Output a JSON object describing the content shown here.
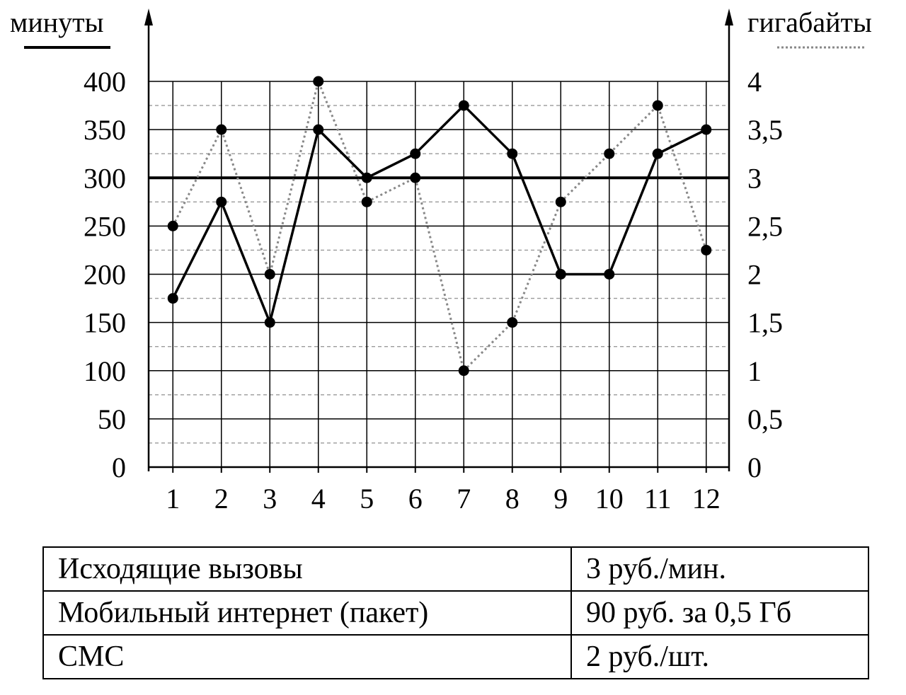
{
  "chart_data": {
    "type": "line",
    "x": [
      1,
      2,
      3,
      4,
      5,
      6,
      7,
      8,
      9,
      10,
      11,
      12
    ],
    "x_ticks": [
      "1",
      "2",
      "3",
      "4",
      "5",
      "6",
      "7",
      "8",
      "9",
      "10",
      "11",
      "12"
    ],
    "y_left": {
      "label": "минуты",
      "ylim": [
        0,
        400
      ],
      "ticks": [
        "0",
        "50",
        "100",
        "150",
        "200",
        "250",
        "300",
        "350",
        "400"
      ]
    },
    "y_right": {
      "label": "гигабайты",
      "ylim": [
        0,
        4
      ],
      "ticks": [
        "0",
        "0,5",
        "1",
        "1,5",
        "2",
        "2,5",
        "3",
        "3,5",
        "4"
      ]
    },
    "reference_line_minutes": 300,
    "grid": true,
    "series": [
      {
        "axis": "left",
        "style": "solid",
        "color": "#000000",
        "values": [
          175,
          275,
          150,
          350,
          300,
          325,
          375,
          325,
          200,
          200,
          325,
          350
        ]
      },
      {
        "axis": "right",
        "style": "dotted",
        "color": "#888888",
        "values": [
          2.5,
          3.5,
          2,
          4,
          2.75,
          3,
          1,
          1.5,
          2.75,
          3.25,
          3.75,
          2.25
        ]
      }
    ]
  },
  "tariffs": [
    {
      "name": "Исходящие вызовы",
      "price": "3 руб./мин."
    },
    {
      "name": "Мобильный интернет (пакет)",
      "price": "90 руб. за 0,5 Гб"
    },
    {
      "name": "СМС",
      "price": "2 руб./шт."
    }
  ]
}
